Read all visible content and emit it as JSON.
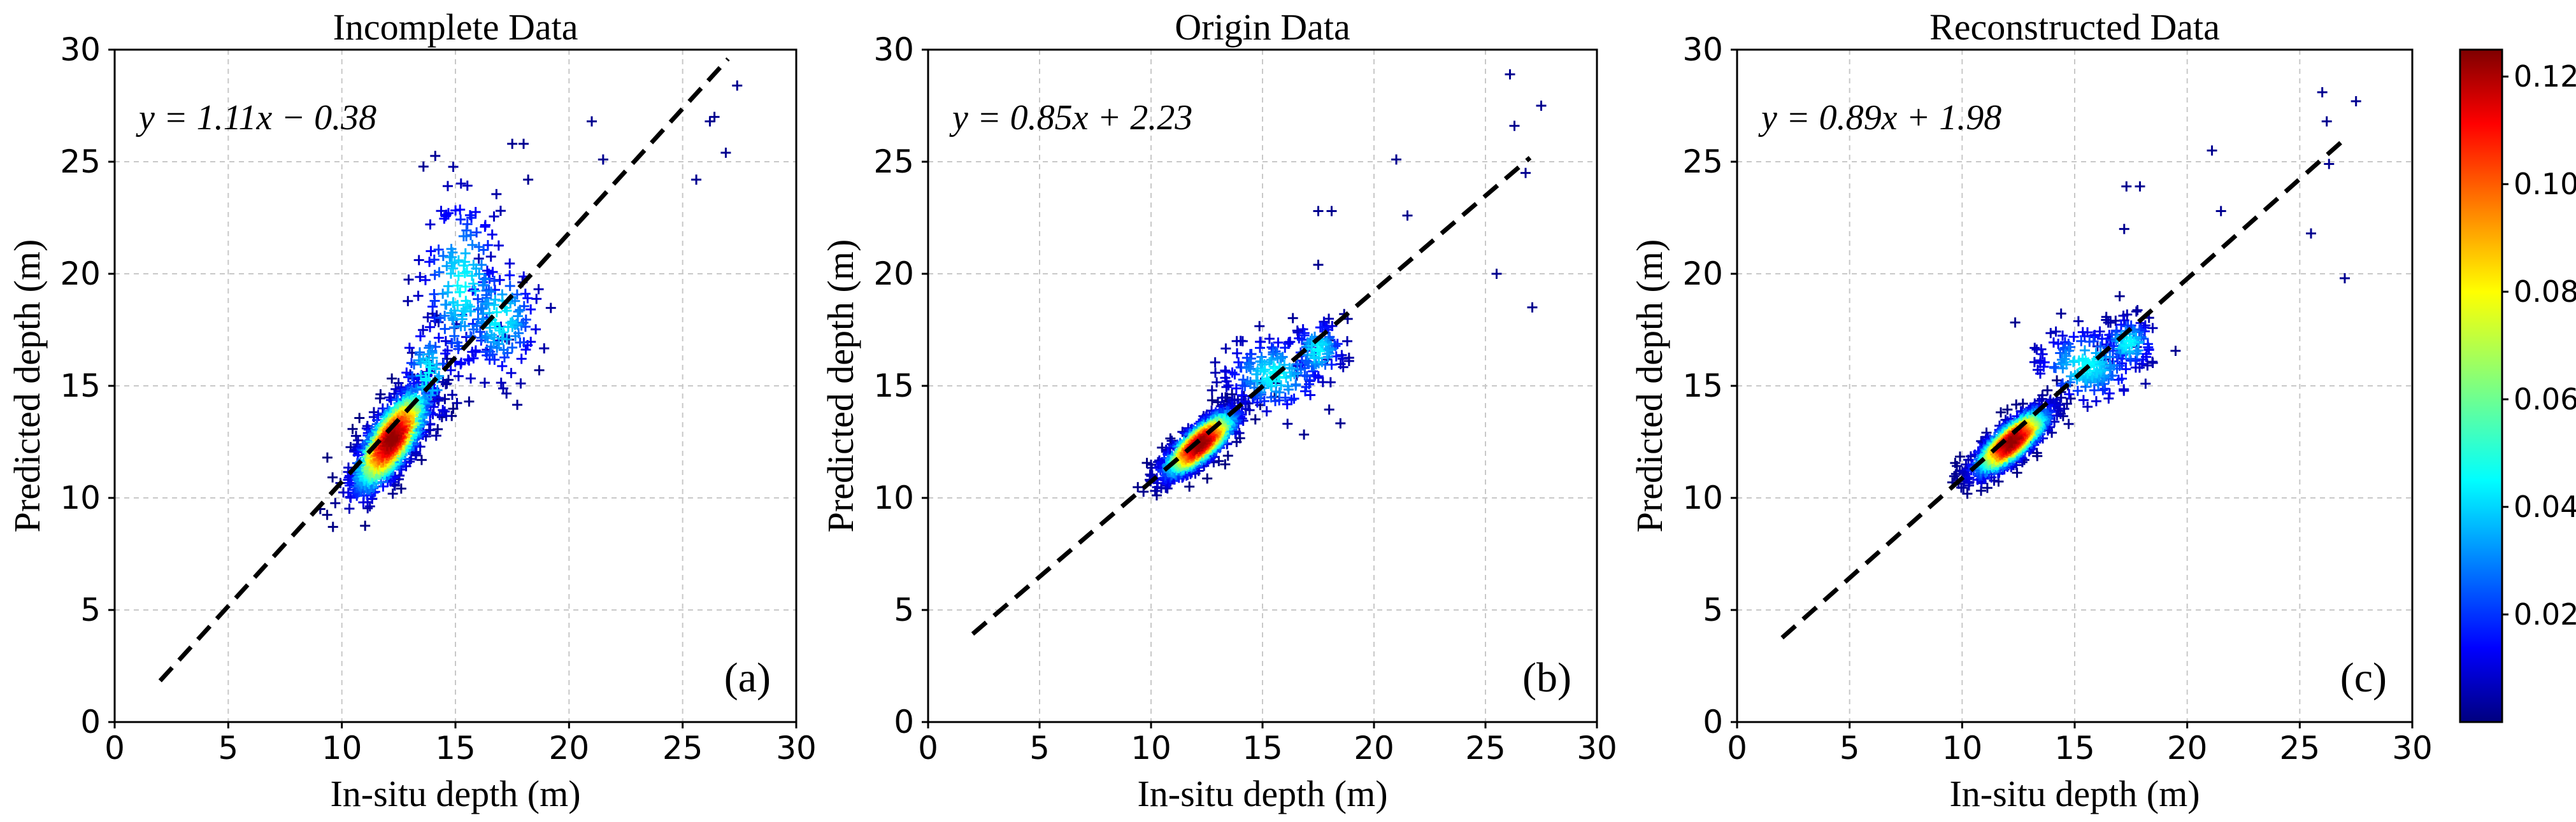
{
  "chart_data": [
    {
      "type": "scatter",
      "title": "Incomplete Data",
      "xlabel": "In-situ depth (m)",
      "ylabel": "Predicted depth (m)",
      "xlim": [
        0,
        30
      ],
      "ylim": [
        0,
        30
      ],
      "xticks": [
        0,
        5,
        10,
        15,
        20,
        25,
        30
      ],
      "yticks": [
        0,
        5,
        10,
        15,
        20,
        25,
        30
      ],
      "grid": true,
      "equation": "y = 1.11x − 0.38",
      "panel_label": "(a)",
      "fit": {
        "slope": 1.11,
        "intercept": -0.38,
        "x_range": [
          2,
          27
        ]
      },
      "marker": "+",
      "dense_core": {
        "center": [
          12.2,
          12.6
        ],
        "spread": [
          0.9,
          1.3
        ],
        "correlation": 0.75,
        "n": 900
      },
      "scatter_clusters": [
        {
          "center": [
            15.3,
            19.5
          ],
          "spread": [
            1.0,
            2.2
          ],
          "n": 150
        },
        {
          "center": [
            17.0,
            18.0
          ],
          "spread": [
            0.9,
            1.4
          ],
          "n": 120
        },
        {
          "center": [
            13.8,
            15.5
          ],
          "spread": [
            0.6,
            1.2
          ],
          "n": 60
        }
      ],
      "outliers": [
        [
          21.0,
          26.8
        ],
        [
          21.5,
          25.1
        ],
        [
          25.6,
          24.2
        ],
        [
          26.2,
          26.8
        ],
        [
          26.4,
          27.0
        ],
        [
          26.9,
          25.4
        ],
        [
          27.4,
          28.4
        ],
        [
          17.5,
          25.8
        ],
        [
          18.0,
          25.8
        ],
        [
          18.2,
          24.2
        ],
        [
          14.2,
          14.4
        ],
        [
          15.6,
          14.3
        ]
      ]
    },
    {
      "type": "scatter",
      "title": "Origin Data",
      "xlabel": "In-situ depth (m)",
      "ylabel": "Predicted depth (m)",
      "xlim": [
        0,
        30
      ],
      "ylim": [
        0,
        30
      ],
      "xticks": [
        0,
        5,
        10,
        15,
        20,
        25,
        30
      ],
      "yticks": [
        0,
        5,
        10,
        15,
        20,
        25,
        30
      ],
      "grid": true,
      "equation": "y = 0.85x + 2.23",
      "panel_label": "(b)",
      "fit": {
        "slope": 0.85,
        "intercept": 2.23,
        "x_range": [
          2,
          27
        ]
      },
      "marker": "+",
      "dense_core": {
        "center": [
          12.2,
          12.4
        ],
        "spread": [
          0.9,
          0.8
        ],
        "correlation": 0.8,
        "n": 900
      },
      "scatter_clusters": [
        {
          "center": [
            15.5,
            15.5
          ],
          "spread": [
            1.2,
            0.9
          ],
          "n": 160
        },
        {
          "center": [
            17.5,
            16.6
          ],
          "spread": [
            0.6,
            0.7
          ],
          "n": 90
        }
      ],
      "outliers": [
        [
          17.5,
          22.8
        ],
        [
          18.1,
          22.8
        ],
        [
          17.5,
          20.4
        ],
        [
          21.0,
          25.1
        ],
        [
          21.5,
          22.6
        ],
        [
          25.5,
          20.0
        ],
        [
          26.1,
          28.9
        ],
        [
          26.3,
          26.6
        ],
        [
          26.8,
          24.5
        ],
        [
          27.1,
          18.5
        ],
        [
          27.5,
          27.5
        ]
      ]
    },
    {
      "type": "scatter",
      "title": "Reconstructed Data",
      "xlabel": "In-situ depth (m)",
      "ylabel": "Predicted depth (m)",
      "xlim": [
        0,
        30
      ],
      "ylim": [
        0,
        30
      ],
      "xticks": [
        0,
        5,
        10,
        15,
        20,
        25,
        30
      ],
      "yticks": [
        0,
        5,
        10,
        15,
        20,
        25,
        30
      ],
      "grid": true,
      "equation": "y = 0.89x + 1.98",
      "panel_label": "(c)",
      "fit": {
        "slope": 0.89,
        "intercept": 1.98,
        "x_range": [
          2,
          27
        ]
      },
      "marker": "+",
      "dense_core": {
        "center": [
          12.2,
          12.5
        ],
        "spread": [
          0.9,
          0.8
        ],
        "correlation": 0.8,
        "n": 900
      },
      "scatter_clusters": [
        {
          "center": [
            15.5,
            15.9
          ],
          "spread": [
            1.2,
            0.9
          ],
          "n": 160
        },
        {
          "center": [
            17.4,
            16.9
          ],
          "spread": [
            0.6,
            0.6
          ],
          "n": 90
        }
      ],
      "outliers": [
        [
          17.3,
          23.9
        ],
        [
          17.9,
          23.9
        ],
        [
          17.2,
          22.0
        ],
        [
          21.1,
          25.5
        ],
        [
          21.5,
          22.8
        ],
        [
          25.5,
          21.8
        ],
        [
          26.0,
          28.1
        ],
        [
          26.2,
          26.8
        ],
        [
          26.3,
          24.9
        ],
        [
          27.0,
          19.8
        ],
        [
          27.5,
          27.7
        ],
        [
          17.0,
          19.0
        ]
      ]
    }
  ],
  "colorbar": {
    "colormap": "jet",
    "min": 0.0,
    "max": 0.125,
    "ticks": [
      0.02,
      0.04,
      0.06,
      0.08,
      0.1,
      0.12
    ],
    "tick_labels": [
      "0.02",
      "0.04",
      "0.06",
      "0.08",
      "0.10",
      "0.12"
    ]
  }
}
